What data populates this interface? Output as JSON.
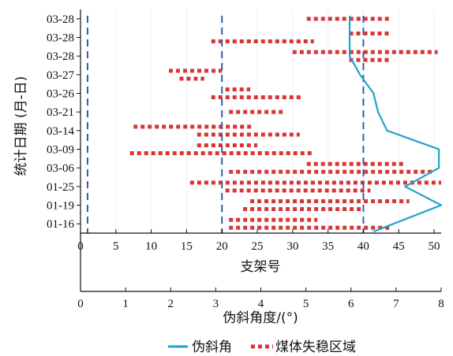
{
  "chart_data": {
    "type": "line",
    "ylabel": "统计日期 (月-日)",
    "y_categories": [
      "01-16",
      "01-19",
      "01-25",
      "03-06",
      "03-09",
      "03-14",
      "03-21",
      "03-26",
      "03-27",
      "03-28",
      "03-28",
      "03-28"
    ],
    "axes": {
      "top_x": {
        "label": "支架号",
        "range": [
          0,
          51
        ],
        "ticks": [
          0,
          5,
          10,
          15,
          20,
          25,
          30,
          35,
          40,
          45,
          50
        ]
      },
      "bottom_x": {
        "label": "伪斜角度/(°)",
        "range": [
          0,
          8
        ],
        "ticks": [
          0,
          1,
          2,
          3,
          4,
          5,
          6,
          7,
          8
        ]
      }
    },
    "reference_lines_support": [
      1,
      20,
      40
    ],
    "series": [
      {
        "name": "伪斜角",
        "color": "#1fa3c8",
        "x_axis": "bottom_x",
        "points": [
          {
            "y": "03-28a",
            "x": 5.97
          },
          {
            "y": "03-28b",
            "x": 5.97
          },
          {
            "y": "03-28c",
            "x": 5.97
          },
          {
            "y": "03-27",
            "x": 6.2
          },
          {
            "y": "03-26",
            "x": 6.5
          },
          {
            "y": "03-21",
            "x": 6.6
          },
          {
            "y": "03-14",
            "x": 6.8
          },
          {
            "y": "03-09",
            "x": 7.95
          },
          {
            "y": "03-06",
            "x": 7.95
          },
          {
            "y": "01-25",
            "x": 7.2
          },
          {
            "y": "01-19",
            "x": 8.0
          },
          {
            "y": "01-16",
            "x": 6.5
          }
        ]
      },
      {
        "name": "煤体失稳区域",
        "color": "#d83535",
        "x_axis": "top_x",
        "segments": [
          {
            "date": "03-28",
            "from": 30,
            "to": 50.5
          },
          {
            "date": "03-28",
            "from": 38,
            "to": 44
          },
          {
            "date": "03-28",
            "from": 38,
            "to": 44
          },
          {
            "date": "03-28",
            "from": 18.5,
            "to": 33
          },
          {
            "date": "03-28",
            "from": 32,
            "to": 44
          },
          {
            "date": "03-27",
            "from": 12.5,
            "to": 20
          },
          {
            "date": "03-27",
            "from": 14,
            "to": 17.5
          },
          {
            "date": "03-26",
            "from": 20.5,
            "to": 24
          },
          {
            "date": "03-26",
            "from": 18.5,
            "to": 31.5
          },
          {
            "date": "03-21",
            "from": 21,
            "to": 29
          },
          {
            "date": "03-14",
            "from": 7.5,
            "to": 24.5
          },
          {
            "date": "03-14",
            "from": 16.5,
            "to": 31
          },
          {
            "date": "03-09",
            "from": 16.5,
            "to": 25
          },
          {
            "date": "03-09",
            "from": 7,
            "to": 33
          },
          {
            "date": "03-06",
            "from": 32,
            "to": 46
          },
          {
            "date": "03-06",
            "from": 21,
            "to": 50
          },
          {
            "date": "01-25",
            "from": 15.5,
            "to": 51
          },
          {
            "date": "01-25",
            "from": 20.5,
            "to": 41
          },
          {
            "date": "01-19",
            "from": 24,
            "to": 46.5
          },
          {
            "date": "01-19",
            "from": 23,
            "to": 40
          },
          {
            "date": "01-16",
            "from": 21,
            "to": 33.5
          },
          {
            "date": "01-16",
            "from": 21,
            "to": 44
          }
        ]
      }
    ],
    "legend": {
      "position": "bottom"
    }
  }
}
